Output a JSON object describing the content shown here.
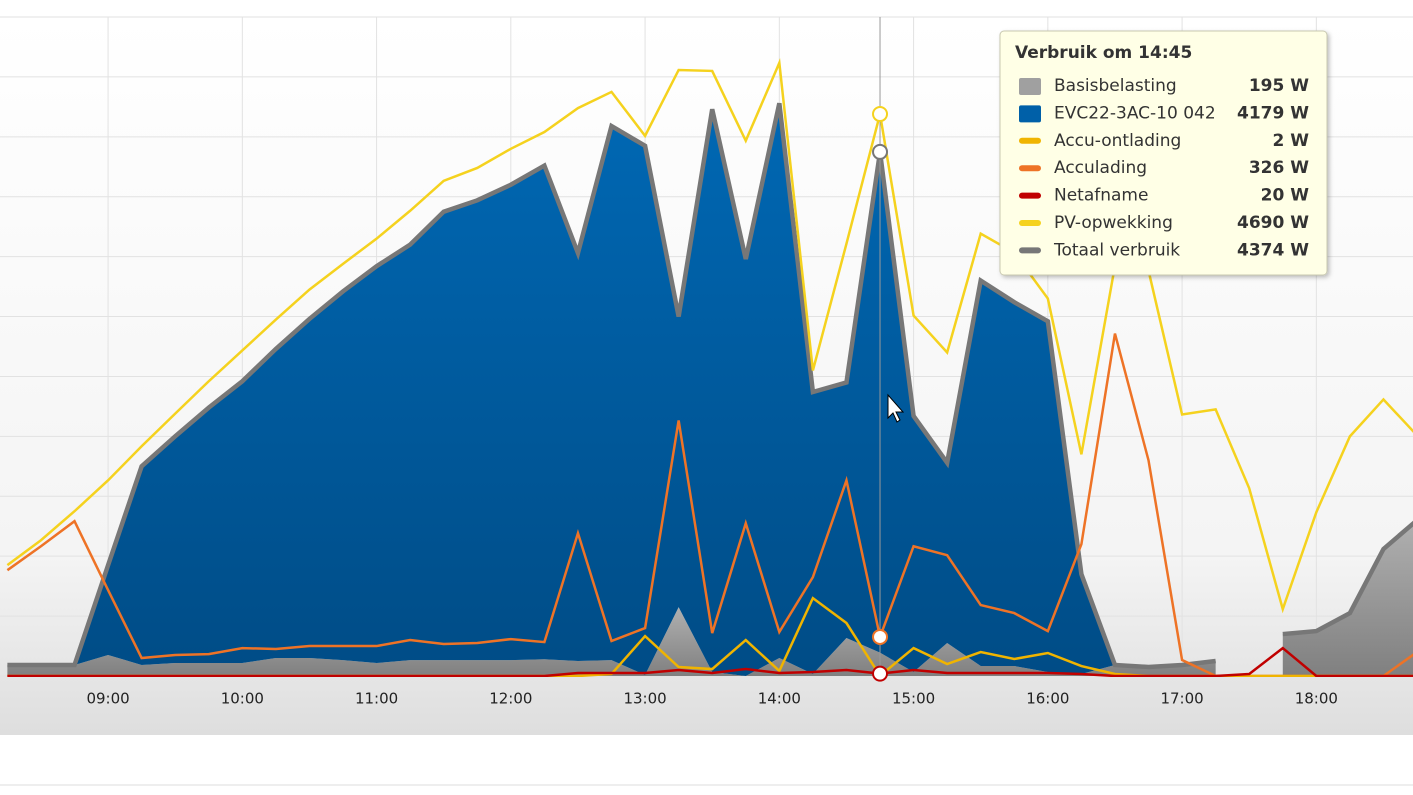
{
  "chart_data": {
    "type": "line",
    "xlim": [
      8.195,
      18.72
    ],
    "xticks": [
      {
        "value": 9,
        "label": "09:00"
      },
      {
        "value": 10,
        "label": "10:00"
      },
      {
        "value": 11,
        "label": "11:00"
      },
      {
        "value": 12,
        "label": "12:00"
      },
      {
        "value": 13,
        "label": "13:00"
      },
      {
        "value": 14,
        "label": "14:00"
      },
      {
        "value": 15,
        "label": "15:00"
      },
      {
        "value": 16,
        "label": "16:00"
      },
      {
        "value": 17,
        "label": "17:00"
      },
      {
        "value": 18,
        "label": "18:00"
      }
    ],
    "ylim": [
      0,
      5500
    ],
    "yticks": [
      0,
      500,
      1000,
      1500,
      2000,
      2500,
      3000,
      3500,
      4000,
      4500,
      5000,
      5500
    ],
    "grid": true,
    "x": [
      8.25,
      8.5,
      8.75,
      9,
      9.25,
      9.5,
      9.75,
      10,
      10.25,
      10.5,
      10.75,
      11,
      11.25,
      11.5,
      11.75,
      12,
      12.25,
      12.5,
      12.75,
      13,
      13.25,
      13.5,
      13.75,
      14,
      14.25,
      14.5,
      14.75,
      15,
      15.25,
      15.5,
      15.75,
      16,
      16.25,
      16.5,
      16.75,
      17,
      17.25,
      17.5,
      17.75,
      18,
      18.25,
      18.5,
      18.75
    ],
    "series": [
      {
        "name": "Basisbelasting",
        "type": "area",
        "color": "#a0a0a0",
        "values": [
          92,
          92,
          92,
          175,
          92,
          108,
          108,
          108,
          150,
          150,
          133,
          108,
          133,
          133,
          133,
          133,
          140,
          125,
          133,
          8,
          575,
          33,
          0,
          150,
          17,
          317,
          195,
          33,
          275,
          83,
          83,
          33,
          17,
          92,
          75,
          92,
          125,
          null,
          350,
          375,
          525,
          1060,
          1300
        ]
      },
      {
        "name": "EVC22-3AC-10 042",
        "type": "area",
        "color": "#0060a8",
        "values": [
          0,
          0,
          0,
          750,
          1658,
          1892,
          2132,
          2352,
          2580,
          2830,
          3077,
          3312,
          3467,
          3742,
          3837,
          3967,
          4120,
          3405,
          4457,
          4417,
          2425,
          4697,
          3480,
          4630,
          2353,
          2133,
          4179,
          2137,
          1505,
          3217,
          3037,
          2927,
          833,
          0,
          0,
          0,
          0,
          null,
          0,
          0,
          0,
          0,
          0
        ]
      },
      {
        "name": "Accu-ontlading",
        "type": "line",
        "color": "#f0b400",
        "values": [
          0,
          0,
          0,
          0,
          0,
          0,
          0,
          0,
          0,
          0,
          0,
          0,
          0,
          0,
          0,
          0,
          0,
          0,
          17,
          333,
          75,
          58,
          300,
          42,
          650,
          442,
          2,
          233,
          100,
          200,
          142,
          192,
          83,
          17,
          0,
          0,
          0,
          0,
          0,
          0,
          0,
          0,
          0
        ]
      },
      {
        "name": "Acculading",
        "type": "line",
        "color": "#ee7326",
        "values": [
          883,
          1083,
          1292,
          717,
          150,
          175,
          183,
          233,
          225,
          250,
          250,
          250,
          300,
          267,
          275,
          308,
          283,
          1192,
          292,
          400,
          2133,
          358,
          1275,
          367,
          825,
          1633,
          326,
          1083,
          1008,
          592,
          525,
          375,
          1100,
          2858,
          1800,
          133,
          0,
          0,
          0,
          0,
          0,
          0,
          200
        ]
      },
      {
        "name": "Netafname",
        "type": "line",
        "color": "#c00000",
        "values": [
          0,
          0,
          0,
          0,
          0,
          0,
          0,
          0,
          0,
          0,
          0,
          0,
          0,
          0,
          0,
          0,
          0,
          25,
          25,
          25,
          50,
          25,
          58,
          25,
          33,
          50,
          20,
          50,
          25,
          25,
          25,
          25,
          17,
          0,
          0,
          0,
          0,
          17,
          233,
          0,
          0,
          0,
          0
        ]
      },
      {
        "name": "PV-opwekking",
        "type": "line",
        "color": "#f5d21e",
        "values": [
          925,
          1133,
          1375,
          1633,
          1917,
          2190,
          2460,
          2717,
          2975,
          3225,
          3440,
          3650,
          3883,
          4133,
          4240,
          4400,
          4540,
          4740,
          4875,
          4508,
          5058,
          5050,
          4467,
          5117,
          2550,
          3608,
          4690,
          3008,
          2700,
          3692,
          3533,
          3150,
          1850,
          3425,
          3383,
          2183,
          2225,
          1567,
          558,
          1367,
          2000,
          2308,
          2008
        ]
      },
      {
        "name": "Totaal verbruik",
        "type": "line",
        "color": "#777777",
        "values": [
          92,
          92,
          92,
          925,
          1750,
          2000,
          2240,
          2460,
          2730,
          2980,
          3210,
          3420,
          3600,
          3875,
          3970,
          4100,
          4260,
          3530,
          4590,
          4425,
          3000,
          4730,
          3480,
          4780,
          2370,
          2450,
          4374,
          2170,
          1780,
          3300,
          3120,
          2960,
          850,
          92,
          75,
          92,
          125,
          null,
          350,
          375,
          525,
          1060,
          1300
        ]
      }
    ],
    "tooltip": {
      "title": "Verbruik om 14:45",
      "x": 14.75,
      "labels": [
        "195 W",
        "4179 W",
        "2 W",
        "326 W",
        "20 W",
        "4690 W",
        "4374 W"
      ]
    }
  }
}
